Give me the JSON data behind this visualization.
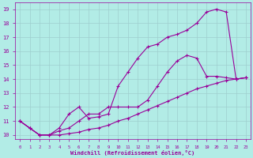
{
  "xlabel": "Windchill (Refroidissement éolien,°C)",
  "bg_color": "#b2ece6",
  "line_color": "#990099",
  "grid_color": "#9ecece",
  "text_color": "#990099",
  "xlim": [
    -0.5,
    23.5
  ],
  "ylim": [
    9.7,
    19.5
  ],
  "xticks": [
    0,
    1,
    2,
    3,
    4,
    5,
    6,
    7,
    8,
    9,
    10,
    11,
    12,
    13,
    14,
    15,
    16,
    17,
    18,
    19,
    20,
    21,
    22,
    23
  ],
  "yticks": [
    10,
    11,
    12,
    13,
    14,
    15,
    16,
    17,
    18,
    19
  ],
  "curve1_x": [
    0,
    1,
    2,
    3,
    4,
    5,
    6,
    7,
    8,
    9,
    10,
    11,
    12,
    13,
    14,
    15,
    16,
    17,
    18,
    19,
    20,
    21,
    22,
    23
  ],
  "curve1_y": [
    11.0,
    10.5,
    10.0,
    10.0,
    10.0,
    10.1,
    10.2,
    10.4,
    10.5,
    10.7,
    11.0,
    11.2,
    11.5,
    11.8,
    12.1,
    12.4,
    12.7,
    13.0,
    13.3,
    13.5,
    13.7,
    13.9,
    14.0,
    14.1
  ],
  "curve2_x": [
    0,
    1,
    2,
    3,
    4,
    5,
    6,
    7,
    8,
    9,
    10,
    11,
    12,
    13,
    14,
    15,
    16,
    17,
    18,
    19,
    20,
    21,
    22,
    23
  ],
  "curve2_y": [
    11.0,
    10.5,
    10.0,
    10.0,
    10.5,
    11.5,
    12.0,
    11.2,
    11.3,
    11.5,
    13.5,
    14.5,
    15.5,
    16.3,
    16.5,
    17.0,
    17.2,
    17.5,
    18.0,
    18.8,
    19.0,
    18.8,
    14.0,
    14.1
  ],
  "curve3_x": [
    0,
    1,
    2,
    3,
    4,
    5,
    6,
    7,
    8,
    9,
    10,
    11,
    12,
    13,
    14,
    15,
    16,
    17,
    18,
    19,
    20,
    21,
    22,
    23
  ],
  "curve3_y": [
    11.0,
    10.5,
    10.0,
    10.0,
    10.3,
    10.5,
    11.0,
    11.5,
    11.5,
    12.0,
    12.0,
    12.0,
    12.0,
    12.5,
    13.5,
    14.5,
    15.3,
    15.7,
    15.5,
    14.2,
    14.2,
    14.1,
    14.0,
    14.1
  ]
}
